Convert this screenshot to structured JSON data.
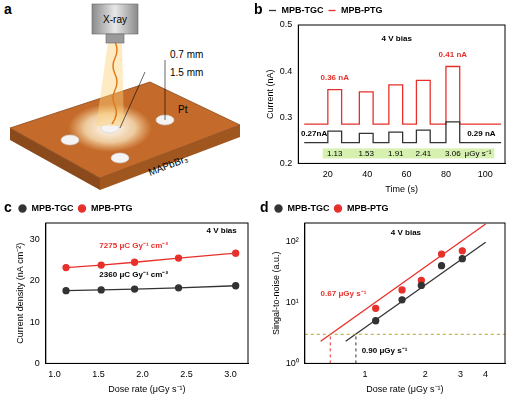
{
  "diagram": {
    "panel_label": "a",
    "source": "X-ray",
    "dimensions": [
      "0.7 mm",
      "1.5 mm"
    ],
    "electrode": "Pt",
    "material": "MAPbBr₃"
  },
  "chart_data": [
    {
      "panel_label": "b",
      "type": "line",
      "x_label": "Time (s)",
      "y_label": "Current (nA)",
      "xlim": [
        5,
        110
      ],
      "xticks": [
        20,
        40,
        60,
        80,
        100
      ],
      "ylim": [
        0.2,
        0.5
      ],
      "yticks": [
        0.2,
        0.3,
        0.4,
        0.5
      ],
      "grid": false,
      "legend": "upper left",
      "x": [
        8,
        20,
        20,
        27,
        27,
        36,
        36,
        43,
        43,
        51,
        51,
        58,
        58,
        65,
        65,
        72,
        72,
        80,
        80,
        87,
        87,
        108
      ],
      "series": [
        {
          "name": "MPB-TGC",
          "color": "#333333",
          "marker": "none",
          "line_style": "solid",
          "values": [
            0.245,
            0.245,
            0.27,
            0.27,
            0.245,
            0.245,
            0.265,
            0.265,
            0.245,
            0.245,
            0.268,
            0.268,
            0.245,
            0.245,
            0.272,
            0.272,
            0.245,
            0.245,
            0.29,
            0.29,
            0.245,
            0.245
          ]
        },
        {
          "name": "MPB-PTG",
          "color": "#e8302a",
          "marker": "none",
          "line_style": "solid",
          "values": [
            0.285,
            0.285,
            0.36,
            0.36,
            0.285,
            0.285,
            0.355,
            0.355,
            0.285,
            0.285,
            0.37,
            0.37,
            0.285,
            0.285,
            0.38,
            0.38,
            0.285,
            0.285,
            0.41,
            0.41,
            0.285,
            0.285
          ]
        }
      ],
      "annotations": [
        {
          "text": "4 V bias",
          "x": 55,
          "y": 0.47,
          "color": "#000000"
        },
        {
          "text": "0.36 nA",
          "x": 23.5,
          "y": 0.385,
          "color": "#e8302a"
        },
        {
          "text": "0.41 nA",
          "x": 83.5,
          "y": 0.435,
          "color": "#e8302a"
        },
        {
          "text": "0.27nA",
          "x": 13,
          "y": 0.265,
          "color": "#000000"
        },
        {
          "text": "0.29 nA",
          "x": 98,
          "y": 0.265,
          "color": "#000000"
        }
      ],
      "dose_rates": {
        "x": [
          23.5,
          39.5,
          54.5,
          68.5,
          83.5
        ],
        "values": [
          1.13,
          1.53,
          1.91,
          2.41,
          3.06
        ],
        "unit": "μGy s⁻¹",
        "color": "#d6f0b0"
      }
    },
    {
      "panel_label": "c",
      "type": "scatter",
      "x_label": "Dose rate (μGy s⁻¹)",
      "y_label": "Current density (nA cm⁻²)",
      "xlim": [
        0.9,
        3.2
      ],
      "xticks": [
        {
          "value": 1,
          "label": "1.0"
        },
        1.5,
        {
          "value": 2,
          "label": "2.0"
        },
        2.5,
        {
          "value": 3,
          "label": "3.0"
        }
      ],
      "ylim": [
        0,
        34
      ],
      "yticks": [
        0,
        10,
        20,
        30
      ],
      "grid": false,
      "legend": "upper left",
      "x": [
        1.13,
        1.53,
        1.91,
        2.41,
        3.06
      ],
      "series": [
        {
          "name": "MPB-TGC",
          "color": "#333333",
          "marker": "circle",
          "line_style": "solid",
          "values": [
            17.6,
            17.8,
            18.0,
            18.3,
            18.8
          ]
        },
        {
          "name": "MPB-PTG",
          "color": "#e8302a",
          "marker": "circle",
          "line_style": "solid",
          "values": [
            23.2,
            23.8,
            24.5,
            25.5,
            26.7
          ]
        }
      ],
      "annotations": [
        {
          "text": "7275 μC Gy⁻¹ cm⁻²",
          "x": 1.9,
          "y": 28.5,
          "color": "#e8302a"
        },
        {
          "text": "2360 μC Gy⁻¹ cm⁻²",
          "x": 1.9,
          "y": 21.5,
          "color": "#000000"
        },
        {
          "text": "4 V bias",
          "x": 2.9,
          "y": 32,
          "color": "#000000"
        }
      ]
    },
    {
      "panel_label": "d",
      "type": "scatter",
      "x_label": "Dose rate (μGy s⁻¹)",
      "y_label": "Singal-to-noise (a.u.)",
      "log": true,
      "xlim": [
        0.5,
        5
      ],
      "xticks": [
        1,
        2,
        3,
        4
      ],
      "ylim": [
        1,
        200
      ],
      "yticks": [
        {
          "value": 1,
          "label": "10⁰"
        },
        {
          "value": 10,
          "label": "10¹"
        },
        {
          "value": 100,
          "label": "10²"
        }
      ],
      "grid": false,
      "legend": "upper left",
      "x": [
        1.13,
        1.53,
        1.91,
        2.41,
        3.06
      ],
      "series": [
        {
          "name": "MPB-TGC",
          "color": "#333333",
          "marker": "circle",
          "values": [
            5,
            11,
            19,
            40,
            52
          ]
        },
        {
          "name": "MPB-PTG",
          "color": "#e8302a",
          "marker": "circle",
          "values": [
            8,
            16,
            23,
            62,
            70
          ]
        }
      ],
      "fits": [
        {
          "color": "#333333",
          "line_style": "solid",
          "x": [
            0.8,
            4
          ],
          "values": [
            2.3,
            97
          ]
        },
        {
          "color": "#e8302a",
          "line_style": "solid",
          "x": [
            0.6,
            4
          ],
          "values": [
            2.3,
            193
          ]
        }
      ],
      "snr_threshold": {
        "value": 3,
        "color": "#b8a030"
      },
      "detection_limits": [
        {
          "value": 0.67,
          "color": "#e8302a"
        },
        {
          "value": 0.9,
          "color": "#333333"
        }
      ],
      "annotations": [
        {
          "text": "0.67 μGy s⁻¹",
          "x": 0.78,
          "y": 14,
          "color": "#e8302a"
        },
        {
          "text": "0.90 μGy s⁻¹",
          "x": 1.25,
          "y": 1.6,
          "color": "#000000"
        },
        {
          "text": "4 V bias",
          "x": 1.6,
          "y": 140,
          "color": "#000000"
        }
      ]
    }
  ]
}
